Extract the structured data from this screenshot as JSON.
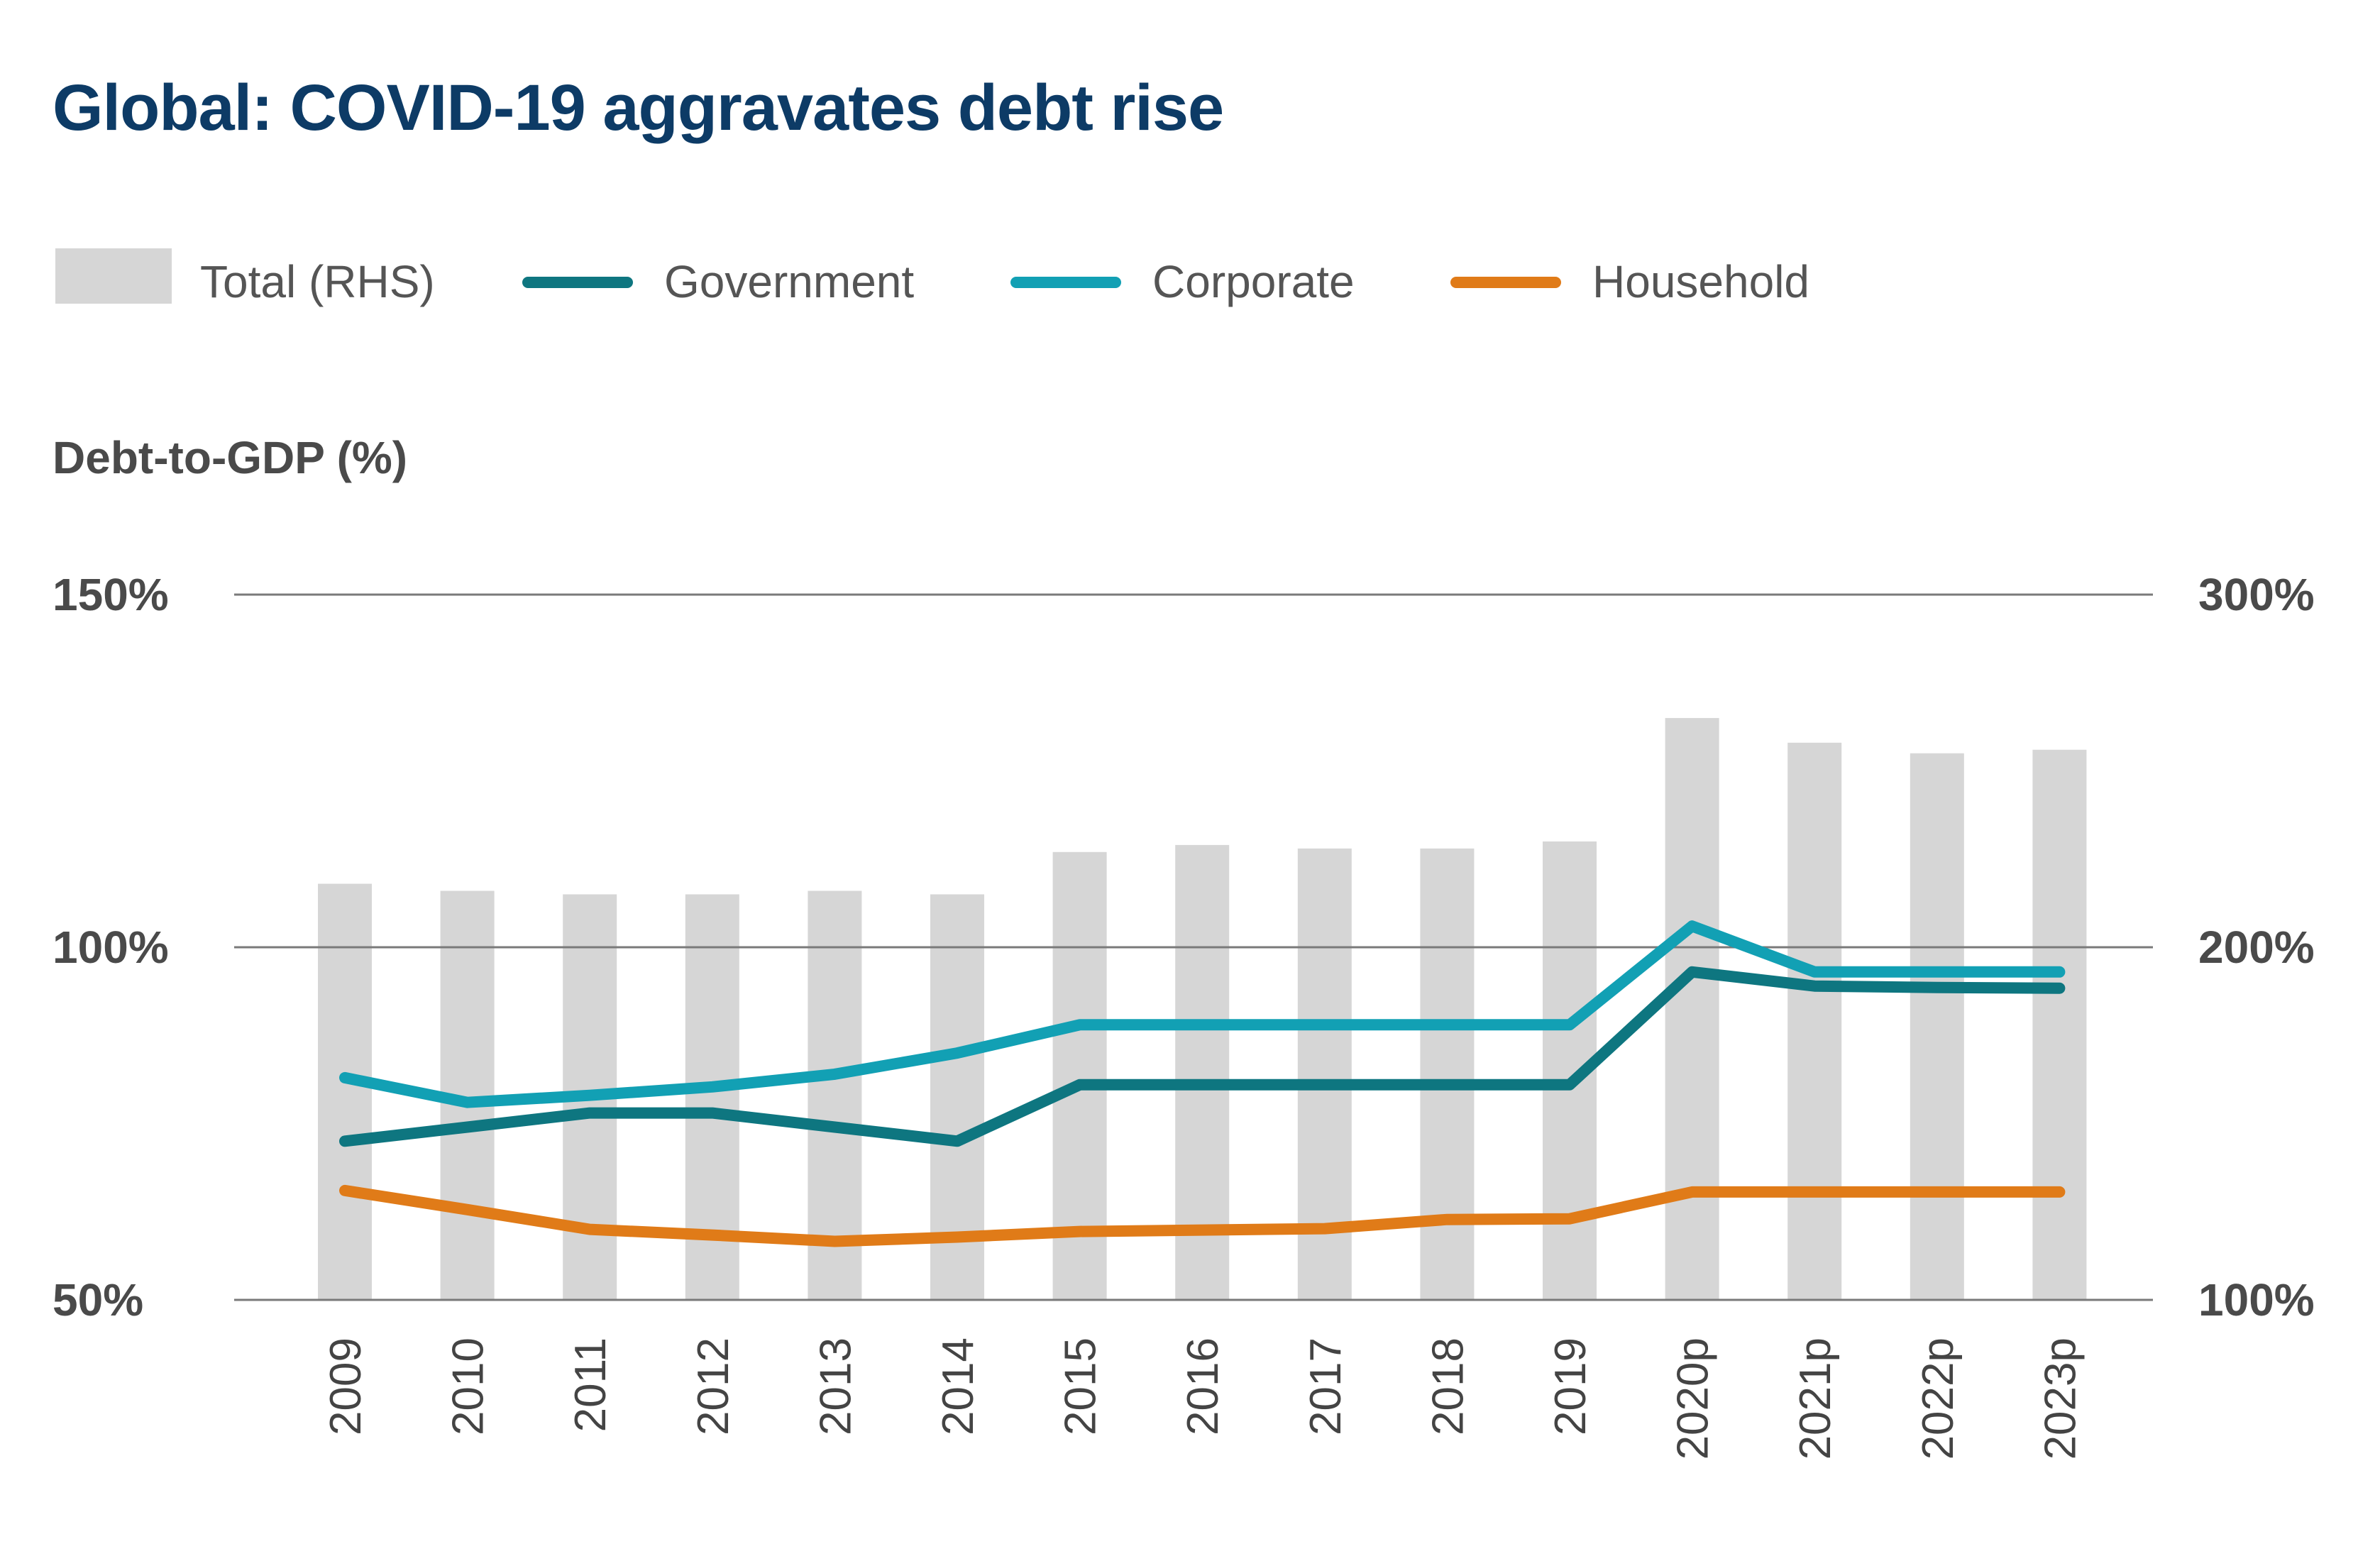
{
  "title": "Global: COVID-19 aggravates debt rise",
  "legend": {
    "total": "Total (RHS)",
    "government": "Government",
    "corporate": "Corporate",
    "household": "Household"
  },
  "colors": {
    "title": "#0d3b66",
    "bars": "#d6d6d6",
    "government": "#0e7680",
    "corporate": "#12a0b4",
    "household": "#e07b18",
    "gridline": "#7a7a7a"
  },
  "chart_data": {
    "type": "bar+line",
    "title": "Global: COVID-19 aggravates debt rise",
    "ylabel": "Debt-to-GDP (%)",
    "categories": [
      "2009",
      "2010",
      "2011",
      "2012",
      "2013",
      "2014",
      "2015",
      "2016",
      "2017",
      "2018",
      "2019",
      "2020p",
      "2021p",
      "2022p",
      "2023p"
    ],
    "left_axis": {
      "ylim": [
        50,
        150
      ],
      "ticks": [
        50,
        100,
        150
      ],
      "tick_labels": [
        "50%",
        "100%",
        "150%"
      ]
    },
    "right_axis": {
      "ylim": [
        100,
        300
      ],
      "ticks": [
        100,
        200,
        300
      ],
      "tick_labels": [
        "100%",
        "200%",
        "300%"
      ]
    },
    "bars": {
      "name": "Total (RHS)",
      "axis": "right",
      "values": [
        218,
        216,
        215,
        215,
        216,
        215,
        227,
        229,
        228,
        228,
        230,
        265,
        258,
        255,
        256
      ]
    },
    "series": [
      {
        "name": "Government",
        "axis": "left",
        "values": [
          72.5,
          74.5,
          76.5,
          76.5,
          74.5,
          72.5,
          80.5,
          80.5,
          80.5,
          80.5,
          80.5,
          96.5,
          94.5,
          94.3,
          94.2
        ]
      },
      {
        "name": "Corporate",
        "axis": "left",
        "values": [
          81.5,
          78,
          79,
          80.2,
          82,
          85,
          89,
          89,
          89,
          89,
          89,
          103,
          96.5,
          96.5,
          96.5
        ]
      },
      {
        "name": "Household",
        "axis": "left",
        "values": [
          65.5,
          62.8,
          60,
          59.2,
          58.3,
          58.9,
          59.7,
          59.9,
          60.1,
          61.4,
          61.5,
          65.3,
          65.3,
          65.3,
          65.3
        ]
      }
    ]
  }
}
